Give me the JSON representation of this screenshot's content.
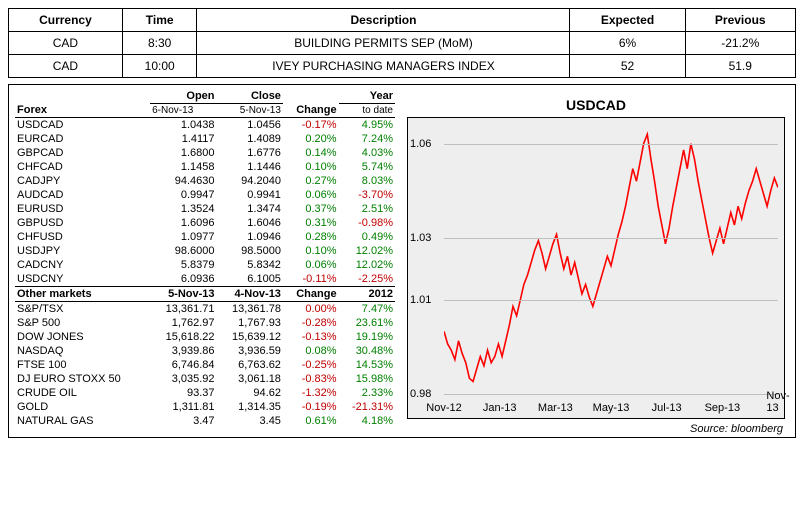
{
  "econ": {
    "headers": [
      "Currency",
      "Time",
      "Description",
      "Expected",
      "Previous"
    ],
    "rows": [
      {
        "currency": "CAD",
        "time": "8:30",
        "desc": "BUILDING PERMITS SEP (MoM)",
        "expected": "6%",
        "previous": "-21.2%"
      },
      {
        "currency": "CAD",
        "time": "10:00",
        "desc": "IVEY PURCHASING MANAGERS INDEX",
        "expected": "52",
        "previous": "51.9"
      }
    ]
  },
  "forex": {
    "title": "Forex",
    "cols": {
      "open": "Open",
      "open_date": "6-Nov-13",
      "close": "Close",
      "close_date": "5-Nov-13",
      "change": "Change",
      "ytd": "Year",
      "ytd2": "to date"
    },
    "rows": [
      {
        "name": "USDCAD",
        "open": "1.0438",
        "close": "1.0456",
        "change": "-0.17%",
        "change_neg": true,
        "ytd": "4.95%",
        "ytd_neg": false
      },
      {
        "name": "EURCAD",
        "open": "1.4117",
        "close": "1.4089",
        "change": "0.20%",
        "change_neg": false,
        "ytd": "7.24%",
        "ytd_neg": false
      },
      {
        "name": "GBPCAD",
        "open": "1.6800",
        "close": "1.6776",
        "change": "0.14%",
        "change_neg": false,
        "ytd": "4.03%",
        "ytd_neg": false
      },
      {
        "name": "CHFCAD",
        "open": "1.1458",
        "close": "1.1446",
        "change": "0.10%",
        "change_neg": false,
        "ytd": "5.74%",
        "ytd_neg": false
      },
      {
        "name": "CADJPY",
        "open": "94.4630",
        "close": "94.2040",
        "change": "0.27%",
        "change_neg": false,
        "ytd": "8.03%",
        "ytd_neg": false
      },
      {
        "name": "AUDCAD",
        "open": "0.9947",
        "close": "0.9941",
        "change": "0.06%",
        "change_neg": false,
        "ytd": "-3.70%",
        "ytd_neg": true
      },
      {
        "name": "EURUSD",
        "open": "1.3524",
        "close": "1.3474",
        "change": "0.37%",
        "change_neg": false,
        "ytd": "2.51%",
        "ytd_neg": false
      },
      {
        "name": "GBPUSD",
        "open": "1.6096",
        "close": "1.6046",
        "change": "0.31%",
        "change_neg": false,
        "ytd": "-0.98%",
        "ytd_neg": true
      },
      {
        "name": "CHFUSD",
        "open": "1.0977",
        "close": "1.0946",
        "change": "0.28%",
        "change_neg": false,
        "ytd": "0.49%",
        "ytd_neg": false
      },
      {
        "name": "USDJPY",
        "open": "98.6000",
        "close": "98.5000",
        "change": "0.10%",
        "change_neg": false,
        "ytd": "12.02%",
        "ytd_neg": false
      },
      {
        "name": "CADCNY",
        "open": "5.8379",
        "close": "5.8342",
        "change": "0.06%",
        "change_neg": false,
        "ytd": "12.02%",
        "ytd_neg": false
      },
      {
        "name": "USDCNY",
        "open": "6.0936",
        "close": "6.1005",
        "change": "-0.11%",
        "change_neg": true,
        "ytd": "-2.25%",
        "ytd_neg": true
      }
    ]
  },
  "other": {
    "title": "Other markets",
    "cols": {
      "d1": "5-Nov-13",
      "d2": "4-Nov-13",
      "change": "Change",
      "yr": "2012"
    },
    "rows": [
      {
        "name": "S&P/TSX",
        "d1": "13,361.71",
        "d2": "13,361.78",
        "change": "0.00%",
        "change_neg": true,
        "yr": "7.47%",
        "yr_neg": false
      },
      {
        "name": "S&P 500",
        "d1": "1,762.97",
        "d2": "1,767.93",
        "change": "-0.28%",
        "change_neg": true,
        "yr": "23.61%",
        "yr_neg": false
      },
      {
        "name": "DOW JONES",
        "d1": "15,618.22",
        "d2": "15,639.12",
        "change": "-0.13%",
        "change_neg": true,
        "yr": "19.19%",
        "yr_neg": false
      },
      {
        "name": "NASDAQ",
        "d1": "3,939.86",
        "d2": "3,936.59",
        "change": "0.08%",
        "change_neg": false,
        "yr": "30.48%",
        "yr_neg": false
      },
      {
        "name": "FTSE 100",
        "d1": "6,746.84",
        "d2": "6,763.62",
        "change": "-0.25%",
        "change_neg": true,
        "yr": "14.53%",
        "yr_neg": false
      },
      {
        "name": "DJ EURO STOXX 50",
        "d1": "3,035.92",
        "d2": "3,061.18",
        "change": "-0.83%",
        "change_neg": true,
        "yr": "15.98%",
        "yr_neg": false
      },
      {
        "name": "CRUDE OIL",
        "d1": "93.37",
        "d2": "94.62",
        "change": "-1.32%",
        "change_neg": true,
        "yr": "2.33%",
        "yr_neg": false
      },
      {
        "name": "GOLD",
        "d1": "1,311.81",
        "d2": "1,314.35",
        "change": "-0.19%",
        "change_neg": true,
        "yr": "-21.31%",
        "yr_neg": true
      },
      {
        "name": "NATURAL GAS",
        "d1": "3.47",
        "d2": "3.45",
        "change": "0.61%",
        "change_neg": false,
        "yr": "4.18%",
        "yr_neg": false
      }
    ]
  },
  "chart": {
    "title": "USDCAD",
    "source": "Source: bloomberg",
    "ylim": [
      0.98,
      1.065
    ],
    "yticks": [
      0.98,
      1.01,
      1.03,
      1.06
    ],
    "yticklabels": [
      "0.98",
      "1.01",
      "1.03",
      "1.06"
    ],
    "xlabels": [
      "Nov-12",
      "Jan-13",
      "Mar-13",
      "May-13",
      "Jul-13",
      "Sep-13",
      "Nov-13"
    ],
    "background_color": "#eeeeee",
    "grid_color": "#bfbfbf",
    "line_color": "#ff0000",
    "line_width": 1.6,
    "series": [
      1.0,
      0.996,
      0.994,
      0.991,
      0.997,
      0.993,
      0.99,
      0.985,
      0.984,
      0.988,
      0.992,
      0.989,
      0.994,
      0.99,
      0.992,
      0.996,
      0.992,
      0.997,
      1.002,
      1.008,
      1.005,
      1.01,
      1.015,
      1.018,
      1.022,
      1.026,
      1.029,
      1.025,
      1.02,
      1.024,
      1.028,
      1.031,
      1.025,
      1.02,
      1.024,
      1.018,
      1.022,
      1.017,
      1.012,
      1.015,
      1.011,
      1.008,
      1.012,
      1.016,
      1.02,
      1.024,
      1.021,
      1.026,
      1.031,
      1.035,
      1.04,
      1.046,
      1.052,
      1.048,
      1.054,
      1.06,
      1.063,
      1.055,
      1.048,
      1.04,
      1.034,
      1.028,
      1.033,
      1.04,
      1.046,
      1.052,
      1.058,
      1.052,
      1.06,
      1.055,
      1.048,
      1.042,
      1.036,
      1.03,
      1.025,
      1.029,
      1.033,
      1.028,
      1.033,
      1.038,
      1.034,
      1.04,
      1.036,
      1.041,
      1.045,
      1.048,
      1.052,
      1.048,
      1.044,
      1.04,
      1.045,
      1.049,
      1.046
    ]
  }
}
